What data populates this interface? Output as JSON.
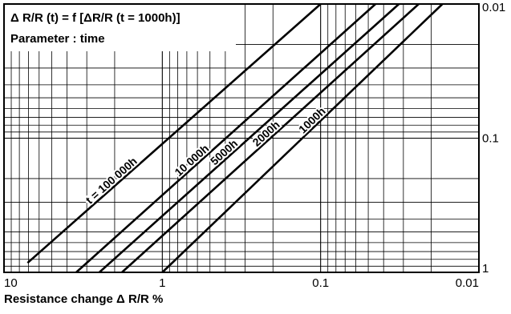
{
  "chart_data": {
    "type": "line",
    "title": "Δ R/R (t) = f [ΔR/R (t = 1000h)]",
    "subtitle": "Parameter : time",
    "xlabel": "Resistance change  Δ R/R %",
    "ylabel": "",
    "x_scale": "log",
    "y_scale": "log",
    "x_reversed": true,
    "y_reversed": true,
    "xlim": [
      10,
      0.01
    ],
    "ylim": [
      1,
      0.01
    ],
    "grid": true,
    "x_ticks": [
      {
        "value": 10,
        "label": "10"
      },
      {
        "value": 1,
        "label": "1"
      },
      {
        "value": 0.1,
        "label": "0.1"
      },
      {
        "value": 0.01,
        "label": "0.01"
      }
    ],
    "y_ticks": [
      {
        "value": 0.01,
        "label": "0.01"
      },
      {
        "value": 0.1,
        "label": "0.1"
      },
      {
        "value": 1,
        "label": "1"
      }
    ],
    "series": [
      {
        "name": "t = 100 000h",
        "x": [
          7.1,
          0.1
        ],
        "y": [
          0.85,
          0.01
        ]
      },
      {
        "name": "10 000h",
        "x": [
          3.5,
          0.045
        ],
        "y": [
          1.0,
          0.01
        ]
      },
      {
        "name": "5000h",
        "x": [
          2.5,
          0.032
        ],
        "y": [
          1.0,
          0.01
        ]
      },
      {
        "name": "2000h",
        "x": [
          1.8,
          0.024
        ],
        "y": [
          1.0,
          0.01
        ]
      },
      {
        "name": "1000h",
        "x": [
          1.0,
          0.017
        ],
        "y": [
          1.0,
          0.01
        ]
      }
    ]
  }
}
